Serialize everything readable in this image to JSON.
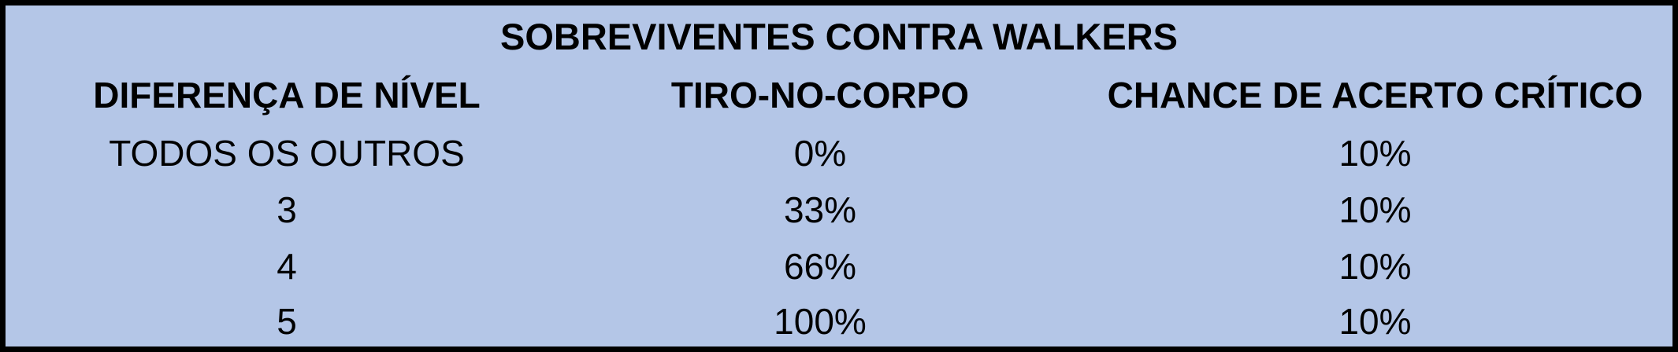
{
  "table": {
    "title": "SOBREVIVENTES CONTRA WALKERS",
    "headers": [
      "DIFERENÇA DE NÍVEL",
      "TIRO-NO-CORPO",
      "CHANCE DE ACERTO CRÍTICO"
    ],
    "rows": [
      [
        "TODOS OS OUTROS",
        "0%",
        "10%"
      ],
      [
        "3",
        "33%",
        "10%"
      ],
      [
        "4",
        "66%",
        "10%"
      ],
      [
        "5",
        "100%",
        "10%"
      ]
    ]
  },
  "colors": {
    "background": "#b4c6e7",
    "border": "#000000",
    "text": "#000000"
  }
}
